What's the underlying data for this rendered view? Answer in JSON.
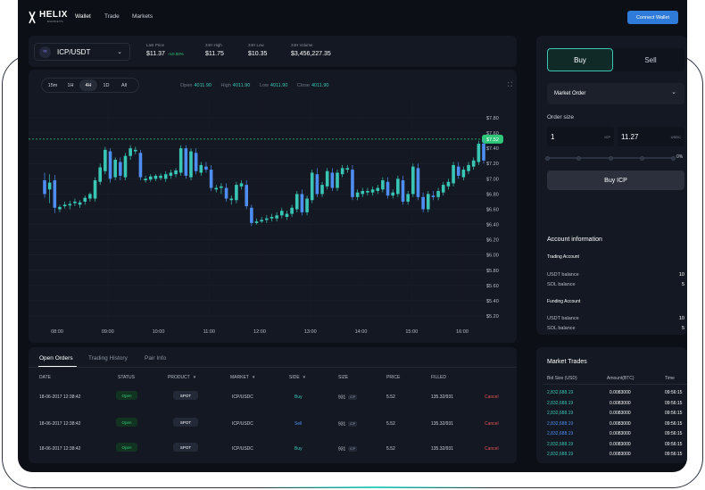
{
  "brand": {
    "name": "HELIX",
    "sub": "MARKETS"
  },
  "nav": {
    "links": [
      "Wallet",
      "Trade",
      "Markets"
    ],
    "connect": "Connect Wallet"
  },
  "ticker": {
    "pair": "ICP/USDT",
    "last_price_label": "Last Price",
    "last_price": "$11.37",
    "change": "+10.00%",
    "high_label": "24H High",
    "high": "$11.75",
    "low_label": "24H Low",
    "low": "$10.35",
    "volume_label": "24H Volume",
    "volume": "$3,456,227.35"
  },
  "chart_header": {
    "timeframes": [
      "15m",
      "1H",
      "4H",
      "1D",
      "All"
    ],
    "active_timeframe": "4H",
    "open_label": "Open",
    "open": "4011.90",
    "high_label": "High",
    "high": "4011.90",
    "low_label": "Low",
    "low": "4011.90",
    "close_label": "Close",
    "close": "4011.90"
  },
  "chart_data": {
    "type": "candlestick",
    "title": "",
    "xlabel": "",
    "ylabel": "",
    "x_ticks": [
      "08:00",
      "09:00",
      "10:00",
      "11:00",
      "12:00",
      "13:00",
      "14:00",
      "15:00",
      "16:00"
    ],
    "y_ticks": [
      "$7.80",
      "$7.60",
      "$7.40",
      "$7.20",
      "$7.00",
      "$6.80",
      "$6.60",
      "$6.40",
      "$6.20",
      "$6.00",
      "$5.80",
      "$5.60",
      "$5.40",
      "$5.20"
    ],
    "ylim": [
      5.2,
      7.8
    ],
    "current_price": 7.52,
    "current_price_label": "$7.52",
    "grid": true,
    "up_color": "#39c6b5",
    "down_color": "#4e8ef2",
    "candles": [
      {
        "o": 6.98,
        "h": 7.08,
        "l": 6.75,
        "c": 6.8
      },
      {
        "o": 6.86,
        "h": 7.06,
        "l": 6.68,
        "c": 6.95
      },
      {
        "o": 6.98,
        "h": 7.05,
        "l": 6.55,
        "c": 6.62
      },
      {
        "o": 6.6,
        "h": 6.66,
        "l": 6.56,
        "c": 6.63
      },
      {
        "o": 6.64,
        "h": 6.7,
        "l": 6.61,
        "c": 6.66
      },
      {
        "o": 6.65,
        "h": 6.71,
        "l": 6.6,
        "c": 6.67
      },
      {
        "o": 6.68,
        "h": 6.74,
        "l": 6.64,
        "c": 6.7
      },
      {
        "o": 6.66,
        "h": 6.72,
        "l": 6.62,
        "c": 6.69
      },
      {
        "o": 6.7,
        "h": 6.78,
        "l": 6.66,
        "c": 6.75
      },
      {
        "o": 6.74,
        "h": 6.82,
        "l": 6.7,
        "c": 6.8
      },
      {
        "o": 6.74,
        "h": 7.02,
        "l": 6.7,
        "c": 6.98
      },
      {
        "o": 6.96,
        "h": 7.2,
        "l": 6.92,
        "c": 7.15
      },
      {
        "o": 7.1,
        "h": 7.42,
        "l": 7.06,
        "c": 7.38
      },
      {
        "o": 7.36,
        "h": 7.4,
        "l": 6.95,
        "c": 7.0
      },
      {
        "o": 7.02,
        "h": 7.28,
        "l": 6.98,
        "c": 7.25
      },
      {
        "o": 7.22,
        "h": 7.28,
        "l": 6.98,
        "c": 7.04
      },
      {
        "o": 7.02,
        "h": 7.34,
        "l": 6.98,
        "c": 7.3
      },
      {
        "o": 7.3,
        "h": 7.44,
        "l": 7.25,
        "c": 7.4
      },
      {
        "o": 7.36,
        "h": 7.42,
        "l": 7.32,
        "c": 7.38
      },
      {
        "o": 7.34,
        "h": 7.38,
        "l": 6.98,
        "c": 7.02
      },
      {
        "o": 6.98,
        "h": 7.04,
        "l": 6.95,
        "c": 7.0
      },
      {
        "o": 6.99,
        "h": 7.06,
        "l": 6.96,
        "c": 7.03
      },
      {
        "o": 7.0,
        "h": 7.06,
        "l": 6.97,
        "c": 7.04
      },
      {
        "o": 7.01,
        "h": 7.07,
        "l": 6.98,
        "c": 7.04
      },
      {
        "o": 7.0,
        "h": 7.1,
        "l": 6.96,
        "c": 7.06
      },
      {
        "o": 7.04,
        "h": 7.12,
        "l": 7.0,
        "c": 7.08
      },
      {
        "o": 7.06,
        "h": 7.14,
        "l": 7.02,
        "c": 7.11
      },
      {
        "o": 7.08,
        "h": 7.44,
        "l": 7.04,
        "c": 7.4
      },
      {
        "o": 7.4,
        "h": 7.44,
        "l": 7.0,
        "c": 7.04
      },
      {
        "o": 7.02,
        "h": 7.4,
        "l": 6.98,
        "c": 7.36
      },
      {
        "o": 7.34,
        "h": 7.4,
        "l": 7.06,
        "c": 7.1
      },
      {
        "o": 7.08,
        "h": 7.22,
        "l": 7.04,
        "c": 7.18
      },
      {
        "o": 7.16,
        "h": 7.22,
        "l": 7.08,
        "c": 7.12
      },
      {
        "o": 7.12,
        "h": 7.18,
        "l": 6.84,
        "c": 6.88
      },
      {
        "o": 6.86,
        "h": 6.92,
        "l": 6.82,
        "c": 6.88
      },
      {
        "o": 6.88,
        "h": 6.94,
        "l": 6.8,
        "c": 6.9
      },
      {
        "o": 6.88,
        "h": 6.94,
        "l": 6.7,
        "c": 6.74
      },
      {
        "o": 6.72,
        "h": 6.78,
        "l": 6.66,
        "c": 6.74
      },
      {
        "o": 6.72,
        "h": 6.96,
        "l": 6.68,
        "c": 6.92
      },
      {
        "o": 6.9,
        "h": 6.98,
        "l": 6.86,
        "c": 6.94
      },
      {
        "o": 6.92,
        "h": 6.98,
        "l": 6.6,
        "c": 6.64
      },
      {
        "o": 6.62,
        "h": 6.66,
        "l": 6.38,
        "c": 6.42
      },
      {
        "o": 6.42,
        "h": 6.48,
        "l": 6.4,
        "c": 6.44
      },
      {
        "o": 6.44,
        "h": 6.5,
        "l": 6.42,
        "c": 6.46
      },
      {
        "o": 6.46,
        "h": 6.52,
        "l": 6.42,
        "c": 6.48
      },
      {
        "o": 6.48,
        "h": 6.54,
        "l": 6.44,
        "c": 6.5
      },
      {
        "o": 6.48,
        "h": 6.56,
        "l": 6.44,
        "c": 6.52
      },
      {
        "o": 6.52,
        "h": 6.62,
        "l": 6.48,
        "c": 6.58
      },
      {
        "o": 6.5,
        "h": 6.58,
        "l": 6.46,
        "c": 6.54
      },
      {
        "o": 6.54,
        "h": 6.66,
        "l": 6.5,
        "c": 6.62
      },
      {
        "o": 6.6,
        "h": 6.84,
        "l": 6.56,
        "c": 6.8
      },
      {
        "o": 6.8,
        "h": 6.86,
        "l": 6.52,
        "c": 6.56
      },
      {
        "o": 6.56,
        "h": 6.78,
        "l": 6.52,
        "c": 6.74
      },
      {
        "o": 6.72,
        "h": 7.12,
        "l": 6.68,
        "c": 7.08
      },
      {
        "o": 7.06,
        "h": 7.14,
        "l": 6.76,
        "c": 6.8
      },
      {
        "o": 6.8,
        "h": 6.96,
        "l": 6.76,
        "c": 6.92
      },
      {
        "o": 6.9,
        "h": 7.14,
        "l": 6.86,
        "c": 7.1
      },
      {
        "o": 7.08,
        "h": 7.14,
        "l": 6.84,
        "c": 6.88
      },
      {
        "o": 6.88,
        "h": 7.12,
        "l": 6.84,
        "c": 7.08
      },
      {
        "o": 7.06,
        "h": 7.18,
        "l": 7.02,
        "c": 7.14
      },
      {
        "o": 7.12,
        "h": 7.18,
        "l": 7.08,
        "c": 7.14
      },
      {
        "o": 7.12,
        "h": 7.18,
        "l": 6.72,
        "c": 6.76
      },
      {
        "o": 6.76,
        "h": 6.86,
        "l": 6.72,
        "c": 6.82
      },
      {
        "o": 6.8,
        "h": 6.88,
        "l": 6.76,
        "c": 6.84
      },
      {
        "o": 6.82,
        "h": 6.88,
        "l": 6.78,
        "c": 6.84
      },
      {
        "o": 6.82,
        "h": 6.9,
        "l": 6.78,
        "c": 6.86
      },
      {
        "o": 6.84,
        "h": 6.92,
        "l": 6.8,
        "c": 6.88
      },
      {
        "o": 6.86,
        "h": 7.02,
        "l": 6.82,
        "c": 6.98
      },
      {
        "o": 6.96,
        "h": 7.02,
        "l": 6.74,
        "c": 6.78
      },
      {
        "o": 6.78,
        "h": 6.86,
        "l": 6.74,
        "c": 6.82
      },
      {
        "o": 6.8,
        "h": 7.04,
        "l": 6.76,
        "c": 7.0
      },
      {
        "o": 6.98,
        "h": 7.04,
        "l": 6.66,
        "c": 6.7
      },
      {
        "o": 6.7,
        "h": 6.84,
        "l": 6.66,
        "c": 6.8
      },
      {
        "o": 6.8,
        "h": 7.2,
        "l": 6.76,
        "c": 7.16
      },
      {
        "o": 7.14,
        "h": 7.2,
        "l": 6.72,
        "c": 6.76
      },
      {
        "o": 6.76,
        "h": 6.82,
        "l": 6.56,
        "c": 6.6
      },
      {
        "o": 6.6,
        "h": 6.84,
        "l": 6.56,
        "c": 6.8
      },
      {
        "o": 6.78,
        "h": 6.84,
        "l": 6.72,
        "c": 6.76
      },
      {
        "o": 6.76,
        "h": 6.88,
        "l": 6.72,
        "c": 6.84
      },
      {
        "o": 6.82,
        "h": 6.96,
        "l": 6.78,
        "c": 6.92
      },
      {
        "o": 6.9,
        "h": 7.0,
        "l": 6.86,
        "c": 6.96
      },
      {
        "o": 6.94,
        "h": 7.22,
        "l": 6.9,
        "c": 7.18
      },
      {
        "o": 7.16,
        "h": 7.22,
        "l": 7.0,
        "c": 7.04
      },
      {
        "o": 7.02,
        "h": 7.16,
        "l": 6.98,
        "c": 7.12
      },
      {
        "o": 7.1,
        "h": 7.22,
        "l": 7.06,
        "c": 7.18
      },
      {
        "o": 7.16,
        "h": 7.28,
        "l": 7.12,
        "c": 7.24
      },
      {
        "o": 7.22,
        "h": 7.5,
        "l": 7.18,
        "c": 7.46
      },
      {
        "o": 7.46,
        "h": 7.52,
        "l": 7.2,
        "c": 7.24
      }
    ]
  },
  "orders": {
    "tabs": [
      "Open Orders",
      "Trading History",
      "Pair Info"
    ],
    "columns": [
      "DATE",
      "STATUS",
      "PRODUCT",
      "MARKET",
      "SIDE",
      "SIZE",
      "PRICE",
      "FILLED"
    ],
    "rows": [
      {
        "date": "18-06-2017 12:38:42",
        "status": "Open",
        "product": "SPOT",
        "market": "ICP/USDC",
        "side": "Buy",
        "size": "931",
        "size_unit": "ICP",
        "price": "5.52",
        "filled": "135.32/931",
        "action": "Cancel"
      },
      {
        "date": "18-06-2017 12:38:42",
        "status": "Open",
        "product": "SPOT",
        "market": "ICP/USDC",
        "side": "Sell",
        "size": "931",
        "size_unit": "ICP",
        "price": "5.52",
        "filled": "135.32/931",
        "action": "Cancel"
      },
      {
        "date": "18-06-2017 12:38:42",
        "status": "Open",
        "product": "SPOT",
        "market": "ICP/USDC",
        "side": "Buy",
        "size": "931",
        "size_unit": "ICP",
        "price": "5.52",
        "filled": "135.32/931",
        "action": "Cancel"
      }
    ]
  },
  "trade": {
    "buy": "Buy",
    "sell": "Sell",
    "order_type": "Market Order",
    "order_size_label": "Order size",
    "size_value": "1",
    "size_unit": "ICP",
    "total_value": "11.27",
    "total_unit": "USDC",
    "slider_pct_label": "0%",
    "slider_level": 0,
    "submit": "Buy ICP"
  },
  "account": {
    "title": "Account information",
    "trading_label": "Trading Account",
    "trading": [
      {
        "label": "USDT balance",
        "value": "10"
      },
      {
        "label": "SOL balance",
        "value": "5"
      }
    ],
    "funding_label": "Funding Account",
    "funding": [
      {
        "label": "USDT balance",
        "value": "10"
      },
      {
        "label": "SOL balance",
        "value": "5"
      }
    ]
  },
  "market_trades": {
    "title": "Market Trades",
    "headers": [
      "Bid Size (USD)",
      "Amount(BTC)",
      "Time"
    ],
    "rows": [
      {
        "price": "2,832,688.19",
        "amount": "0.0083000",
        "time": "09:56:15",
        "dir": "up"
      },
      {
        "price": "2,832,688.19",
        "amount": "0.0083000",
        "time": "09:56:15",
        "dir": "up"
      },
      {
        "price": "2,832,688.19",
        "amount": "0.0083000",
        "time": "09:56:15",
        "dir": "up"
      },
      {
        "price": "2,832,688.19",
        "amount": "0.0083000",
        "time": "09:56:15",
        "dir": "down"
      },
      {
        "price": "2,832,688.19",
        "amount": "0.0083000",
        "time": "09:56:15",
        "dir": "down"
      },
      {
        "price": "2,832,688.19",
        "amount": "0.0083000",
        "time": "09:56:15",
        "dir": "up"
      },
      {
        "price": "2,832,688.19",
        "amount": "0.0083000",
        "time": "09:56:15",
        "dir": "up"
      }
    ]
  }
}
